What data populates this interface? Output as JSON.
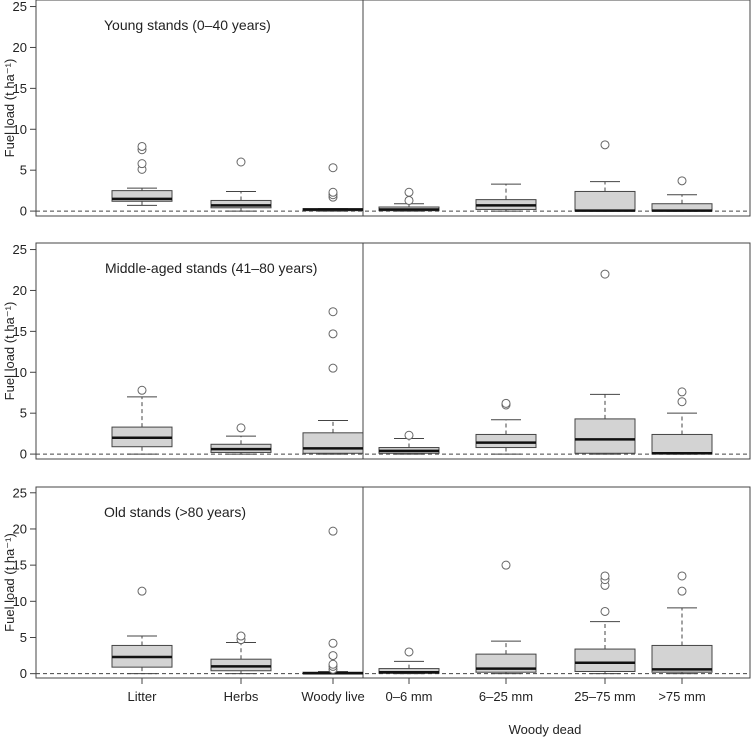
{
  "chart_data": {
    "type": "boxplot",
    "ylabel": "Fuel load (t ha⁻¹)",
    "xlabel": "Woody dead",
    "categories": [
      "Litter",
      "Herbs",
      "Woody live",
      "0–6 mm",
      "6–25 mm",
      "25–75 mm",
      ">75 mm"
    ],
    "y_ticks": [
      0,
      5,
      10,
      15,
      20,
      25
    ],
    "ylim": [
      -0.6,
      25.8
    ],
    "reference_line": 0,
    "colors": {
      "box": "#d3d3d3",
      "stroke": "#444444",
      "frame": "#444444"
    },
    "panels": [
      {
        "title": "Young stands (0–40 years)",
        "boxes": [
          {
            "q1": 1.2,
            "median": 1.5,
            "q3": 2.5,
            "low": 0.7,
            "high": 2.8,
            "outliers": [
              5.1,
              5.8,
              7.5,
              7.9
            ]
          },
          {
            "q1": 0.4,
            "median": 0.7,
            "q3": 1.3,
            "low": 0.0,
            "high": 2.4,
            "outliers": [
              6.0
            ]
          },
          {
            "q1": 0.05,
            "median": 0.2,
            "q3": 0.3,
            "low": 0.0,
            "high": 0.3,
            "outliers": [
              1.7,
              2.0,
              2.3,
              5.3
            ]
          },
          {
            "q1": 0.05,
            "median": 0.2,
            "q3": 0.5,
            "low": 0.0,
            "high": 0.9,
            "outliers": [
              1.3,
              2.3
            ]
          },
          {
            "q1": 0.2,
            "median": 0.7,
            "q3": 1.4,
            "low": 0.0,
            "high": 3.3,
            "outliers": []
          },
          {
            "q1": 0.0,
            "median": 0.05,
            "q3": 2.4,
            "low": 0.0,
            "high": 3.6,
            "outliers": [
              8.1
            ]
          },
          {
            "q1": 0.0,
            "median": 0.05,
            "q3": 0.9,
            "low": 0.0,
            "high": 2.0,
            "outliers": [
              3.7
            ]
          }
        ]
      },
      {
        "title": "Middle-aged stands (41–80 years)",
        "boxes": [
          {
            "q1": 0.9,
            "median": 2.0,
            "q3": 3.3,
            "low": 0.0,
            "high": 7.0,
            "outliers": [
              7.8
            ]
          },
          {
            "q1": 0.2,
            "median": 0.6,
            "q3": 1.2,
            "low": 0.0,
            "high": 2.2,
            "outliers": [
              3.2
            ]
          },
          {
            "q1": 0.1,
            "median": 0.7,
            "q3": 2.6,
            "low": 0.0,
            "high": 4.1,
            "outliers": [
              10.5,
              14.7,
              17.4
            ]
          },
          {
            "q1": 0.1,
            "median": 0.4,
            "q3": 0.8,
            "low": 0.0,
            "high": 1.9,
            "outliers": [
              2.3
            ]
          },
          {
            "q1": 0.8,
            "median": 1.4,
            "q3": 2.4,
            "low": 0.0,
            "high": 4.2,
            "outliers": [
              6.0,
              6.2
            ]
          },
          {
            "q1": 0.1,
            "median": 1.8,
            "q3": 4.3,
            "low": 0.0,
            "high": 7.3,
            "outliers": [
              22.0
            ]
          },
          {
            "q1": 0.0,
            "median": 0.1,
            "q3": 2.4,
            "low": 0.0,
            "high": 5.0,
            "outliers": [
              6.4,
              7.6
            ]
          }
        ]
      },
      {
        "title": "Old stands (>80 years)",
        "boxes": [
          {
            "q1": 0.9,
            "median": 2.3,
            "q3": 3.9,
            "low": 0.0,
            "high": 5.2,
            "outliers": [
              11.4
            ]
          },
          {
            "q1": 0.4,
            "median": 1.0,
            "q3": 2.0,
            "low": 0.0,
            "high": 4.3,
            "outliers": [
              4.7,
              5.2
            ]
          },
          {
            "q1": 0.0,
            "median": 0.05,
            "q3": 0.2,
            "low": 0.0,
            "high": 0.3,
            "outliers": [
              0.6,
              1.0,
              1.3,
              2.5,
              4.2,
              19.7
            ]
          },
          {
            "q1": 0.05,
            "median": 0.2,
            "q3": 0.7,
            "low": 0.0,
            "high": 1.7,
            "outliers": [
              3.0
            ]
          },
          {
            "q1": 0.2,
            "median": 0.7,
            "q3": 2.7,
            "low": 0.0,
            "high": 4.5,
            "outliers": [
              15.0
            ]
          },
          {
            "q1": 0.3,
            "median": 1.5,
            "q3": 3.4,
            "low": 0.0,
            "high": 7.2,
            "outliers": [
              8.6,
              12.2,
              13.0,
              13.5
            ]
          },
          {
            "q1": 0.2,
            "median": 0.6,
            "q3": 3.9,
            "low": 0.0,
            "high": 9.1,
            "outliers": [
              11.4,
              13.5
            ]
          }
        ]
      }
    ]
  }
}
